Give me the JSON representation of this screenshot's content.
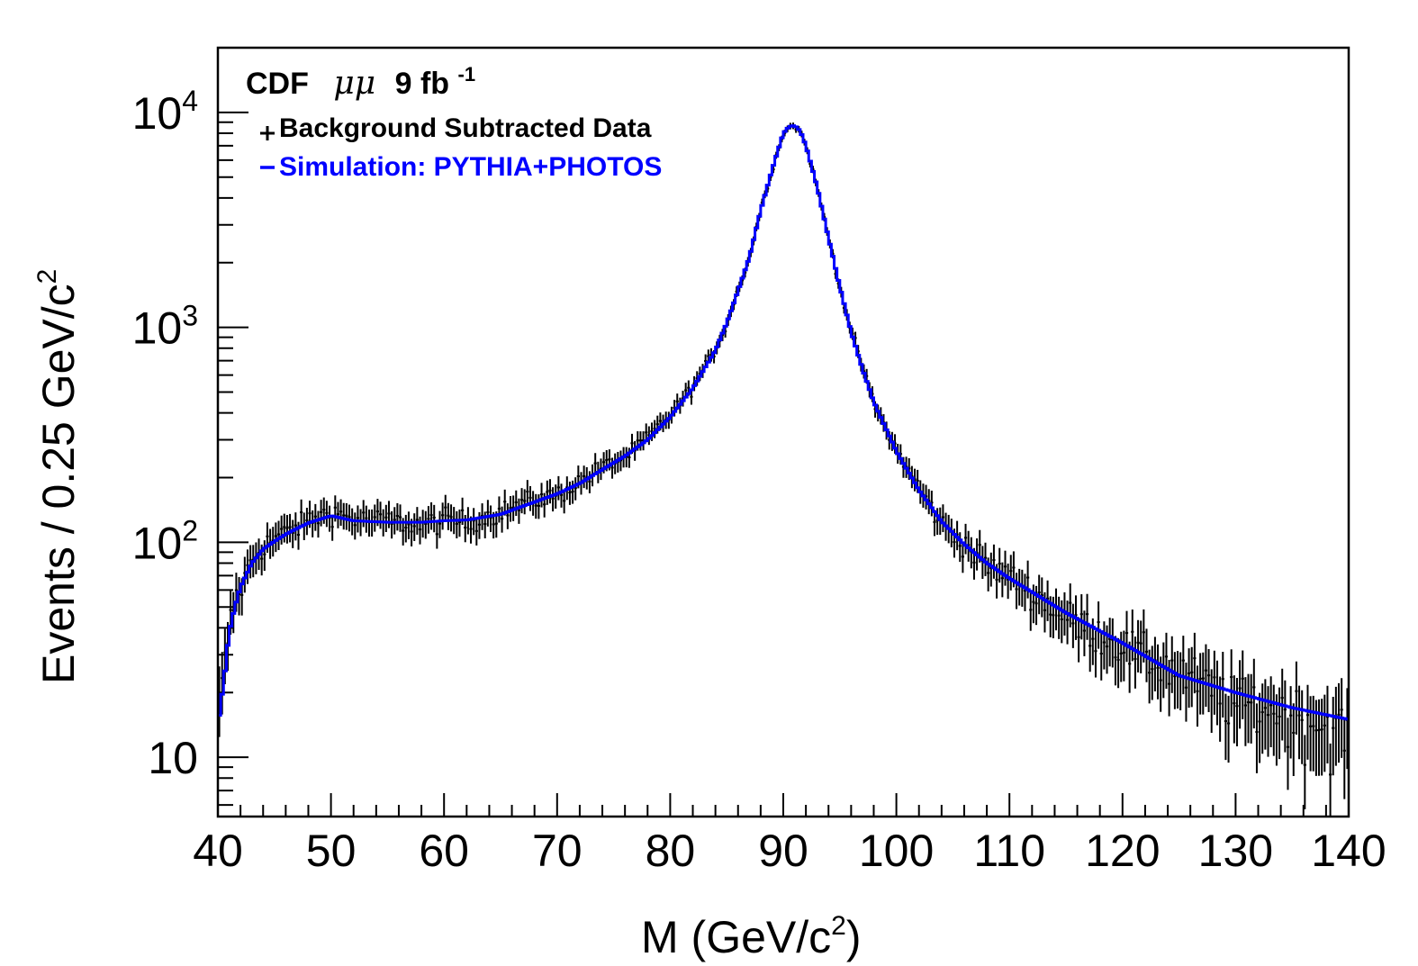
{
  "chart_data": {
    "type": "line",
    "header": {
      "experiment": "CDF",
      "channel": "μμ",
      "luminosity": "9 fb",
      "luminosity_exp": "-1"
    },
    "xlabel": "M  (GeV/c",
    "xlabel_exp": "2",
    "xlabel_tail": ")",
    "ylabel": "Events / 0.25 GeV/c",
    "ylabel_exp": "2",
    "xlim": [
      40,
      140
    ],
    "ylim": [
      5.3,
      20000
    ],
    "yscale": "log",
    "x_ticks": [
      "40",
      "50",
      "60",
      "70",
      "80",
      "90",
      "100",
      "110",
      "120",
      "130",
      "140"
    ],
    "y_tick_labels": [
      {
        "base": "10",
        "exp": "",
        "value": 10
      },
      {
        "base": "10",
        "exp": "2",
        "value": 100
      },
      {
        "base": "10",
        "exp": "3",
        "value": 1000
      },
      {
        "base": "10",
        "exp": "4",
        "value": 10000
      }
    ],
    "legend": {
      "position": "top-left",
      "entries": [
        {
          "label": "Background Subtracted Data",
          "color": "#000000",
          "marker": "cross"
        },
        {
          "label": "Simulation: PYTHIA+PHOTOS",
          "color": "#0000ff",
          "marker": "line"
        }
      ]
    },
    "series": [
      {
        "name": "Simulation: PYTHIA+PHOTOS",
        "color": "#0000ff",
        "x": [
          40,
          40.5,
          41,
          41.5,
          42,
          43,
          44,
          45,
          46,
          47,
          48,
          50,
          52,
          55,
          58,
          60,
          62,
          65,
          68,
          70,
          72,
          74,
          76,
          78,
          80,
          82,
          84,
          85,
          86,
          87,
          88,
          89,
          90,
          90.5,
          91,
          91.5,
          92,
          93,
          94,
          95,
          96,
          97,
          98,
          100,
          102,
          104,
          106,
          108,
          110,
          115,
          120,
          125,
          130,
          135,
          140
        ],
        "y": [
          14,
          22,
          38,
          50,
          62,
          80,
          93,
          101,
          109,
          116,
          123,
          133,
          126,
          124,
          124,
          126,
          127,
          135,
          154,
          168,
          188,
          218,
          252,
          300,
          383,
          522,
          782,
          1050,
          1480,
          2120,
          3500,
          5400,
          8000,
          8600,
          8700,
          8200,
          7000,
          4500,
          2600,
          1550,
          950,
          640,
          450,
          265,
          175,
          125,
          98,
          80,
          68,
          47,
          34,
          24,
          20,
          17,
          15
        ]
      },
      {
        "name": "Background Subtracted Data",
        "color": "#000000",
        "x": [
          40,
          40.5,
          41,
          41.5,
          42,
          43,
          44,
          45,
          46,
          47,
          48,
          50,
          52,
          55,
          58,
          60,
          62,
          65,
          68,
          70,
          72,
          74,
          76,
          78,
          80,
          82,
          84,
          85,
          86,
          87,
          88,
          89,
          90,
          90.5,
          91,
          91.5,
          92,
          93,
          94,
          95,
          96,
          97,
          98,
          100,
          102,
          104,
          106,
          108,
          110,
          115,
          120,
          125,
          130,
          135,
          140
        ],
        "y": [
          15,
          24,
          40,
          55,
          60,
          84,
          96,
          104,
          112,
          118,
          126,
          140,
          128,
          126,
          120,
          128,
          125,
          138,
          158,
          166,
          192,
          224,
          248,
          306,
          392,
          530,
          790,
          1040,
          1500,
          2100,
          3550,
          5350,
          8050,
          8550,
          8650,
          8150,
          7050,
          4450,
          2650,
          1530,
          960,
          660,
          440,
          270,
          180,
          122,
          100,
          78,
          70,
          45,
          33,
          25,
          18,
          16,
          13
        ],
        "err_frac": 0.12
      }
    ]
  }
}
